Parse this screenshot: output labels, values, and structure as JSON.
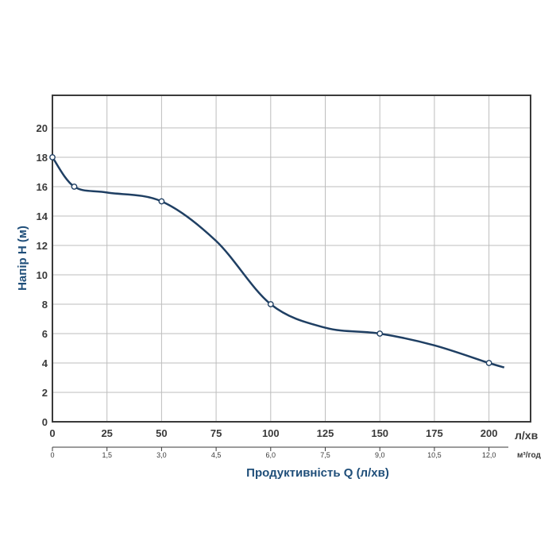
{
  "chart_data": {
    "type": "line",
    "xlabel": "Продуктивність Q (л/хв)",
    "ylabel": "Напір H (м)",
    "x_unit": "л/хв",
    "secondary_x_unit": "м³/год",
    "xlim": [
      0,
      220
    ],
    "ylim": [
      0,
      22
    ],
    "x_ticks": [
      0,
      25,
      50,
      75,
      100,
      125,
      150,
      175,
      200
    ],
    "x_tick_labels": [
      "0",
      "25",
      "50",
      "75",
      "100",
      "125",
      "150",
      "175",
      "200"
    ],
    "y_ticks": [
      0,
      2,
      4,
      6,
      8,
      10,
      12,
      14,
      16,
      18,
      20
    ],
    "y_tick_labels": [
      "0",
      "2",
      "4",
      "6",
      "8",
      "10",
      "12",
      "14",
      "16",
      "18",
      "20"
    ],
    "secondary_x_ticks": [
      0,
      25,
      50,
      75,
      100,
      125,
      150,
      175,
      200
    ],
    "secondary_x_tick_labels": [
      "0",
      "1,5",
      "3,0",
      "4,5",
      "6,0",
      "7,5",
      "9,0",
      "10,5",
      "12,0"
    ],
    "grid": true,
    "colors": {
      "curve": "#1f3f63",
      "title": "#1f4e79",
      "grid": "#bdbdbd",
      "frame": "#3a3a3a"
    },
    "series": [
      {
        "markers": [
          {
            "x": 0,
            "y": 18
          },
          {
            "x": 10,
            "y": 16
          },
          {
            "x": 50,
            "y": 15
          },
          {
            "x": 100,
            "y": 8
          },
          {
            "x": 150,
            "y": 6
          },
          {
            "x": 200,
            "y": 4
          }
        ],
        "curve": [
          {
            "x": 0,
            "y": 18
          },
          {
            "x": 10,
            "y": 16
          },
          {
            "x": 25,
            "y": 15.6
          },
          {
            "x": 50,
            "y": 15
          },
          {
            "x": 75,
            "y": 12.3
          },
          {
            "x": 100,
            "y": 8
          },
          {
            "x": 125,
            "y": 6.4
          },
          {
            "x": 150,
            "y": 6
          },
          {
            "x": 175,
            "y": 5.2
          },
          {
            "x": 200,
            "y": 4
          },
          {
            "x": 207,
            "y": 3.7
          }
        ]
      }
    ]
  }
}
